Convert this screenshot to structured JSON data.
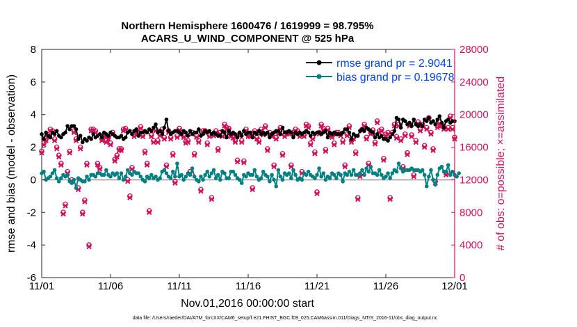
{
  "chart_data": {
    "type": "line",
    "title_line1": "Northern Hemisphere 1600476 / 1619999 = 98.795%",
    "title_line2": "ACARS_U_WIND_COMPONENT @ 525 hPa",
    "xlabel": "Nov.01,2016 00:00:00 start",
    "ylabel_left": "rmse and bias (model - observation)",
    "ylabel_right": "# of obs: o=possible; ×=assimilated",
    "footer": "data file: /Users/raeder/DAI/ATM_forcXX/CAM6_setup/f.e21.FHIST_BGC.f09_025.CAM6assim.011/Diags_NTrS_2016-11/obs_diag_output.nc",
    "x_ticks": [
      "11/01",
      "11/06",
      "11/11",
      "11/16",
      "11/21",
      "11/26",
      "12/01"
    ],
    "x_tick_days": [
      0,
      5,
      10,
      15,
      20,
      25,
      30
    ],
    "xlim": [
      0,
      30
    ],
    "ylim_left": [
      -6,
      8
    ],
    "y_ticks_left": [
      "-6",
      "-4",
      "-2",
      "0",
      "2",
      "4",
      "6",
      "8"
    ],
    "ylim_right": [
      0,
      28000
    ],
    "y_ticks_right": [
      "0",
      "4000",
      "8000",
      "12000",
      "16000",
      "20000",
      "24000",
      "28000"
    ],
    "legend": {
      "rmse_label": "rmse grand pr = 2.9041",
      "bias_label": "bias grand pr = 0.19678",
      "position": "top-right"
    },
    "colors": {
      "rmse": "#000000",
      "bias": "#008080",
      "obs": "#d0105a",
      "right_axis": "#d0105a",
      "legend_text": "#0044ee",
      "zero_line": "#b0b0b0"
    },
    "rmse": [
      2.8,
      2.5,
      2.9,
      2.7,
      2.6,
      2.9,
      2.8,
      3.0,
      2.7,
      2.6,
      2.8,
      2.9,
      3.3,
      3.1,
      3.3,
      3.3,
      3.1,
      2.5,
      2.7,
      2.3,
      2.5,
      2.4,
      2.6,
      2.5,
      2.8,
      2.6,
      2.7,
      2.8,
      2.6,
      2.9,
      2.8,
      2.7,
      2.9,
      2.8,
      2.7,
      2.6,
      2.6,
      2.7,
      2.5,
      2.6,
      2.9,
      3.0,
      2.8,
      3.0,
      3.1,
      2.7,
      2.9,
      2.9,
      3.0,
      2.9,
      3.1,
      3.0,
      3.2,
      3.4,
      2.9,
      3.0,
      2.8,
      3.2,
      3.7,
      3.0,
      2.8,
      2.9,
      3.0,
      3.0,
      2.9,
      2.8,
      3.0,
      2.9,
      2.7,
      3.0,
      2.8,
      2.9,
      2.9,
      3.1,
      2.7,
      2.8,
      3.0,
      2.9,
      3.0,
      2.8,
      2.9,
      2.8,
      2.7,
      2.7,
      3.0,
      2.9,
      2.6,
      3.0,
      2.8,
      2.9,
      2.8,
      2.6,
      2.9,
      2.7,
      3.0,
      2.8,
      2.9,
      2.9,
      2.6,
      2.9,
      2.8,
      3.0,
      2.8,
      2.9,
      2.8,
      2.9,
      2.6,
      2.8,
      2.9,
      3.0,
      3.0,
      2.8,
      3.2,
      2.9,
      2.9,
      3.0,
      2.9,
      2.6,
      2.9,
      2.8,
      2.9,
      2.8,
      2.9,
      3.0,
      2.9,
      2.7,
      2.9,
      2.8,
      2.9,
      2.9,
      2.8,
      2.9,
      3.0,
      2.6,
      2.9,
      2.8,
      2.9,
      2.8,
      2.8,
      2.8,
      2.9,
      3.1,
      3.1,
      2.9,
      2.5,
      2.8,
      2.7,
      2.7,
      3.0,
      3.1,
      3.0,
      3.2,
      3.1,
      3.0,
      2.9,
      2.6,
      2.8,
      2.6,
      2.7,
      2.5,
      2.5,
      2.4,
      2.6,
      2.8,
      3.0,
      3.8,
      3.7,
      3.2,
      3.7,
      3.6,
      3.4,
      3.5,
      3.3,
      3.7,
      3.4,
      3.3,
      3.4,
      3.3,
      3.7,
      3.6,
      3.8,
      3.5,
      3.6,
      3.4,
      3.7,
      3.9,
      3.5,
      3.2,
      3.6,
      3.7,
      3.5,
      3.6,
      3.6
    ],
    "bias": [
      0.4,
      0.5,
      0.0,
      0.1,
      0.2,
      0.4,
      0.6,
      0.1,
      -0.1,
      0.1,
      0.3,
      0.2,
      0.3,
      -0.1,
      -0.2,
      0.0,
      -0.5,
      0.1,
      0.0,
      -0.1,
      -0.1,
      0.2,
      0.0,
      0.3,
      0.3,
      0.2,
      0.4,
      0.4,
      0.3,
      0.3,
      0.6,
      0.3,
      0.2,
      0.4,
      0.3,
      0.4,
      0.1,
      0.4,
      0.0,
      0.2,
      0.6,
      0.4,
      0.3,
      0.5,
      0.4,
      0.4,
      0.2,
      0.0,
      -0.1,
      0.2,
      0.1,
      0.3,
      0.1,
      0.2,
      0.0,
      0.1,
      0.5,
      0.6,
      0.4,
      0.2,
      0.1,
      0.5,
      0.2,
      1.0,
      0.2,
      0.3,
      0.0,
      0.2,
      0.4,
      0.3,
      0.7,
      0.2,
      0.0,
      -0.1,
      0.2,
      0.0,
      0.3,
      0.5,
      0.2,
      0.4,
      0.6,
      0.1,
      0.3,
      0.0,
      0.5,
      0.4,
      0.1,
      0.1,
      0.5,
      0.5,
      0.3,
      0.1,
      0.0,
      -0.2,
      0.3,
      0.2,
      0.4,
      0.3,
      0.3,
      0.6,
      0.2,
      0.0,
      0.1,
      0.5,
      0.3,
      0.2,
      -0.1,
      0.3,
      0.0,
      -0.4,
      0.6,
      0.2,
      0.0,
      0.4,
      0.3,
      0.4,
      0.1,
      0.6,
      0.3,
      0.0,
      0.1,
      0.0,
      0.4,
      0.3,
      0.5,
      0.3,
      0.2,
      0.1,
      0.3,
      0.7,
      0.2,
      0.4,
      0.0,
      0.2,
      0.1,
      0.4,
      0.3,
      0.1,
      0.4,
      0.3,
      -0.1,
      0.4,
      0.3,
      0.5,
      0.3,
      0.6,
      0.3,
      0.3,
      0.4,
      0.6,
      0.3,
      0.7,
      0.5,
      0.8,
      0.4,
      0.4,
      0.3,
      0.6,
      0.3,
      0.1,
      0.2,
      0.4,
      0.1,
      0.4,
      0.6,
      0.5,
      1.0,
      0.7,
      0.5,
      0.6,
      0.6,
      0.6,
      0.7,
      0.6,
      0.6,
      0.6,
      0.5,
      0.6,
      0.3,
      -0.4,
      0.2,
      0.6,
      0.0,
      -0.3,
      0.3,
      0.7,
      0.8,
      0.5,
      0.5,
      0.9,
      0.3,
      0.5,
      0.3,
      0.2,
      0.4
    ],
    "obs_possible": [
      15500,
      16500,
      17000,
      17500,
      18200,
      18000,
      17000,
      16000,
      15000,
      14000,
      8000,
      9000,
      13000,
      15500,
      12000,
      18000,
      17000,
      11000,
      16000,
      8000,
      9500,
      14000,
      4000,
      18200,
      18200,
      18000,
      14000,
      13500,
      17000,
      17500,
      16800,
      17200,
      16500,
      17800,
      14500,
      15000,
      15800,
      15800,
      18200,
      18300,
      12000,
      10000,
      13500,
      17500,
      18000,
      17800,
      18500,
      17500,
      15500,
      14000,
      8200,
      17500,
      16800,
      18200,
      16800,
      17600,
      18200,
      17200,
      13800,
      18000,
      17200,
      15200,
      11800,
      17400,
      18300,
      17800,
      17400,
      16700,
      16800,
      13000,
      17800,
      15200,
      17400,
      16800,
      10800,
      18000,
      18000,
      16500,
      17500,
      9800,
      17600,
      18000,
      15800,
      17800,
      17500,
      18800,
      18400,
      18300,
      17500,
      17300,
      16800,
      14400,
      17600,
      16800,
      14300,
      18200,
      17500,
      17500,
      11000,
      18000,
      17200,
      16800,
      18200,
      17700,
      18600,
      15800,
      17800,
      17500,
      13800,
      17200,
      17800,
      18400,
      15200,
      17500,
      17800,
      17800,
      13800,
      17800,
      18200,
      18000,
      17500,
      13000,
      17500,
      18800,
      18600,
      16500,
      17200,
      15400,
      10500,
      17800,
      18800,
      18300,
      15700,
      18300,
      17600,
      17400,
      16500,
      17800,
      17800,
      17600,
      16800,
      13800,
      17600,
      18600,
      16800,
      17200,
      15400,
      9800,
      12600,
      18200,
      18800,
      17200,
      14000,
      17800,
      18100,
      16600,
      19200,
      18000,
      18200,
      14600,
      17600,
      17800,
      9800,
      17800,
      18800,
      17300,
      18800,
      17000,
      13600,
      17600,
      15300,
      18800,
      17500,
      12600,
      16800,
      19100,
      18200,
      18800,
      16200,
      18400,
      19600,
      17800,
      15800,
      11800,
      18600,
      19100,
      18800,
      18400,
      12800,
      18400,
      19800,
      18400,
      17200
    ],
    "obs_assimilated": [
      15300,
      16300,
      16800,
      17300,
      18000,
      17800,
      16800,
      15800,
      14800,
      13800,
      7800,
      8800,
      12800,
      15300,
      11800,
      17800,
      16800,
      10800,
      15800,
      7800,
      9300,
      13800,
      3800,
      18000,
      18000,
      17800,
      13800,
      13300,
      16800,
      17300,
      16600,
      17000,
      16300,
      17600,
      14300,
      14800,
      15600,
      15600,
      18000,
      18100,
      11800,
      9800,
      13300,
      17300,
      17800,
      17600,
      18300,
      17300,
      15300,
      13800,
      8000,
      17300,
      16600,
      18000,
      16600,
      17400,
      18000,
      17000,
      13600,
      17800,
      17000,
      15000,
      11600,
      17200,
      18100,
      17600,
      17200,
      16500,
      16600,
      12800,
      17600,
      15000,
      17200,
      16600,
      10600,
      17800,
      17800,
      16300,
      17300,
      9600,
      17400,
      17800,
      15600,
      17600,
      17300,
      18600,
      18200,
      18100,
      17300,
      17100,
      16600,
      14200,
      17400,
      16600,
      14100,
      18000,
      17300,
      17300,
      10800,
      17800,
      17000,
      16600,
      18000,
      17500,
      18400,
      15600,
      17600,
      17300,
      13600,
      17000,
      17600,
      18200,
      15000,
      17300,
      17600,
      17600,
      13600,
      17600,
      18000,
      17800,
      17300,
      12800,
      17300,
      18600,
      18400,
      16300,
      17000,
      15200,
      10300,
      17600,
      18600,
      18100,
      15500,
      18100,
      17400,
      17200,
      16300,
      17600,
      17600,
      17400,
      16600,
      13600,
      17400,
      18400,
      16600,
      17000,
      15200,
      9600,
      12400,
      18000,
      18600,
      17000,
      13800,
      17600,
      17900,
      16400,
      19000,
      17800,
      18000,
      14400,
      17400,
      17600,
      9600,
      17600,
      18600,
      17100,
      18600,
      16800,
      13400,
      17400,
      15100,
      18600,
      17300,
      12400,
      16600,
      18900,
      18000,
      18600,
      16000,
      18200,
      19400,
      17600,
      15600,
      11600,
      18400,
      18900,
      18600,
      18200,
      12600,
      18200,
      19600,
      18200,
      17000
    ]
  }
}
